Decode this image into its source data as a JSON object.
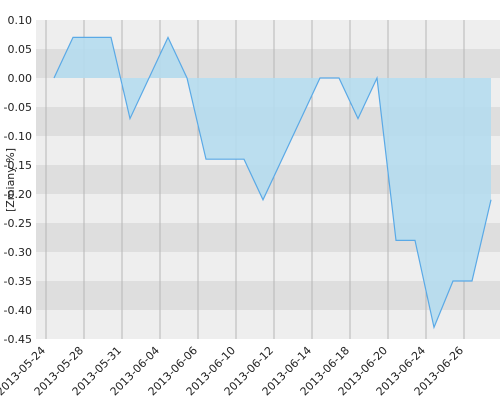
{
  "chart_data": {
    "type": "area",
    "y_label": "[Zmiany %]",
    "categories": [
      "2013-05-24",
      null,
      "2013-05-28",
      null,
      "2013-05-31",
      null,
      "2013-06-04",
      null,
      "2013-06-06",
      null,
      "2013-06-10",
      null,
      "2013-06-12",
      null,
      "2013-06-14",
      null,
      "2013-06-18",
      null,
      "2013-06-20",
      null,
      "2013-06-24",
      null,
      "2013-06-26",
      null
    ],
    "values": [
      0,
      0.07,
      0.07,
      0.07,
      -0.07,
      0,
      0.07,
      0,
      -0.14,
      -0.14,
      -0.14,
      -0.21,
      -0.14,
      -0.07,
      0,
      0,
      -0.07,
      0,
      -0.28,
      -0.28,
      -0.43,
      -0.35,
      -0.35,
      -0.21
    ],
    "color": "#5aa9e6",
    "fill": "#b5dcee",
    "ylim": [
      -0.45,
      0.1
    ],
    "yticks": [
      {
        "value": 0.1,
        "label": "0.10"
      },
      {
        "value": 0.05,
        "label": "0.05"
      },
      {
        "value": 0,
        "label": "0.00"
      },
      {
        "value": -0.05,
        "label": "-0.05"
      },
      {
        "value": -0.1,
        "label": "-0.10"
      },
      {
        "value": -0.15,
        "label": "-0.15"
      },
      {
        "value": -0.2,
        "label": "-0.20"
      },
      {
        "value": -0.25,
        "label": "-0.25"
      },
      {
        "value": -0.3,
        "label": "-0.30"
      },
      {
        "value": -0.35,
        "label": "-0.35"
      },
      {
        "value": -0.4,
        "label": "-0.40"
      },
      {
        "value": -0.45,
        "label": "-0.45"
      }
    ],
    "grid": true
  }
}
